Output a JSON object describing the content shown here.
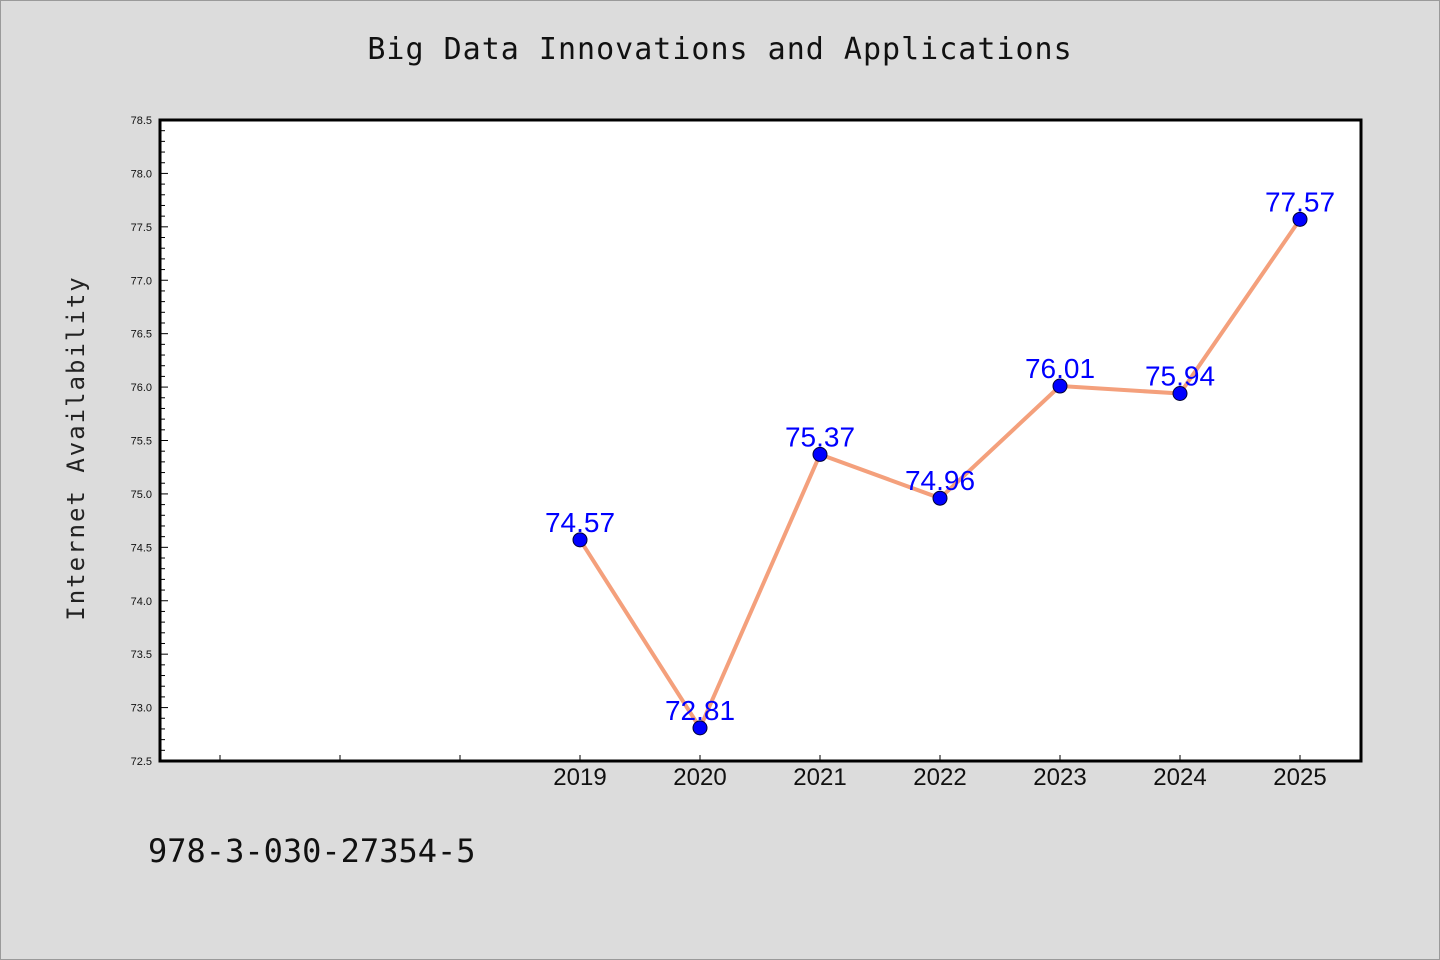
{
  "chart_data": {
    "type": "line",
    "title": "Big Data Innovations and Applications",
    "xlabel": "",
    "ylabel": "Internet Availability",
    "x": [
      "2019",
      "2020",
      "2021",
      "2022",
      "2023",
      "2024",
      "2025"
    ],
    "series": [
      {
        "values": [
          74.57,
          72.81,
          75.37,
          74.96,
          76.01,
          75.94,
          77.57
        ],
        "data_labels": [
          "74.57",
          "72.81",
          "75.37",
          "74.96",
          "76.01",
          "75.94",
          "77.57"
        ],
        "line_color": "#f4a07c",
        "marker_color": "#0000ff"
      }
    ],
    "ylim": [
      72.5,
      78.5
    ],
    "yticks": [
      "72.5",
      "73.0",
      "73.5",
      "74.0",
      "74.5",
      "75.0",
      "75.5",
      "76.0",
      "76.5",
      "77.0",
      "77.5",
      "78.0",
      "78.5"
    ],
    "grid": false,
    "legend": "none"
  },
  "footer": {
    "text": "978-3-030-27354-5"
  },
  "colors": {
    "background": "#dcdcdc",
    "plot_background": "#ffffff",
    "data_label": "#0000ff"
  }
}
